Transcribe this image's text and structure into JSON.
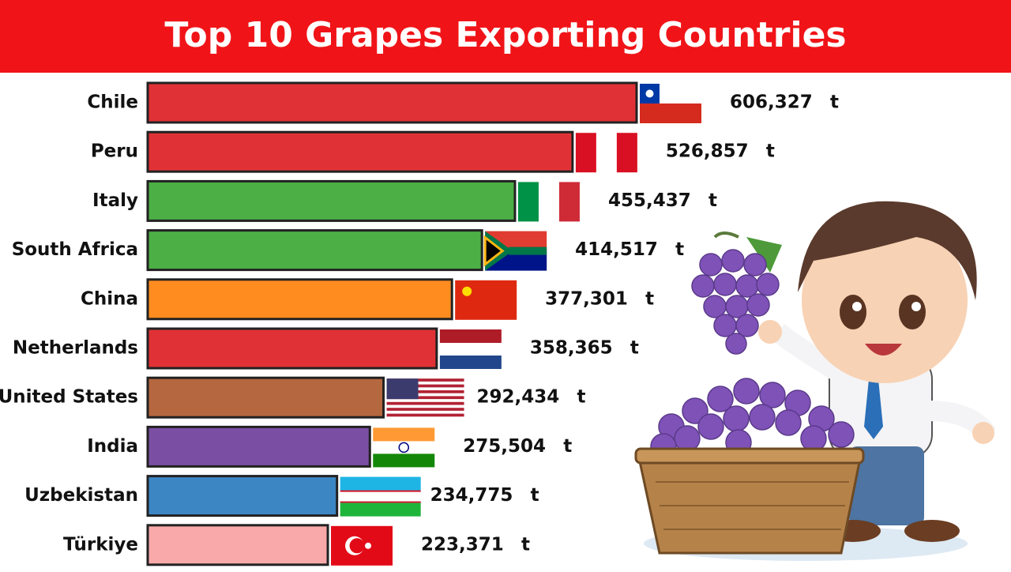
{
  "chart_data": {
    "type": "bar",
    "orientation": "horizontal",
    "title": "Top 10 Grapes Exporting Countries",
    "categories": [
      "Chile",
      "Peru",
      "Italy",
      "South Africa",
      "China",
      "Netherlands",
      "United States",
      "India",
      "Uzbekistan",
      "Türkiye"
    ],
    "values": [
      606327,
      526857,
      455437,
      414517,
      377301,
      358365,
      292434,
      275504,
      234775,
      223371
    ],
    "value_labels": [
      "606,327",
      "526,857",
      "455,437",
      "414,517",
      "377,301",
      "358,365",
      "292,434",
      "275,504",
      "234,775",
      "223,371"
    ],
    "unit": "t",
    "colors": [
      "#e03236",
      "#e03236",
      "#4caf45",
      "#4caf45",
      "#ff8c1f",
      "#e03236",
      "#b5673f",
      "#7a4fa3",
      "#3c86c4",
      "#f9a9a9"
    ]
  }
}
